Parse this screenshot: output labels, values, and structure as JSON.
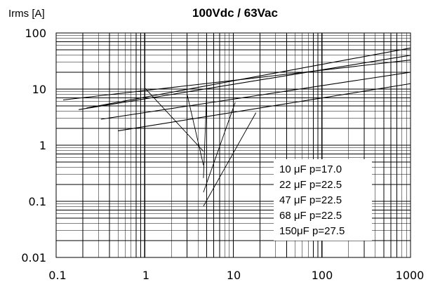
{
  "chart_data": {
    "type": "line",
    "title": "100Vdc / 63Vac",
    "ylabel": "Irms [A]",
    "xlabel": "",
    "xscale": "log",
    "yscale": "log",
    "xlim": [
      0.1,
      1000
    ],
    "ylim": [
      0.01,
      100
    ],
    "x_ticks": [
      "0.1",
      "1",
      "10",
      "100",
      "1000"
    ],
    "y_ticks": [
      "100",
      "10",
      "1",
      "0.1",
      "0.01"
    ],
    "grid": true,
    "legend_position": "lower-right",
    "series": [
      {
        "name": "10  μF  p=17.0",
        "curve": [
          [
            0.12,
            6.4
          ],
          [
            1000,
            33
          ]
        ],
        "knee": [
          1,
          10.5
        ],
        "leader_end": [
          4.6,
          0.78
        ]
      },
      {
        "name": "22  μF  p=22.5",
        "curve": [
          [
            0.18,
            4.3
          ],
          [
            1000,
            40
          ]
        ],
        "knee": [
          3,
          8.2
        ],
        "leader_end": [
          4.6,
          0.44
        ]
      },
      {
        "name": "47  μF  p=22.5",
        "curve": [
          [
            0.22,
            4.6
          ],
          [
            1000,
            54
          ]
        ],
        "knee": [
          5,
          8.3
        ],
        "leader_end": [
          4.6,
          0.26
        ]
      },
      {
        "name": "68  μF  p=22.5",
        "curve": [
          [
            0.32,
            2.9
          ],
          [
            1000,
            20
          ]
        ],
        "knee": [
          10.5,
          5.8
        ],
        "leader_end": [
          4.6,
          0.145
        ]
      },
      {
        "name": "150μF  p=27.5",
        "curve": [
          [
            0.5,
            1.8
          ],
          [
            1000,
            12.5
          ]
        ],
        "knee": [
          18,
          3.8
        ],
        "leader_end": [
          4.6,
          0.082
        ]
      }
    ]
  }
}
